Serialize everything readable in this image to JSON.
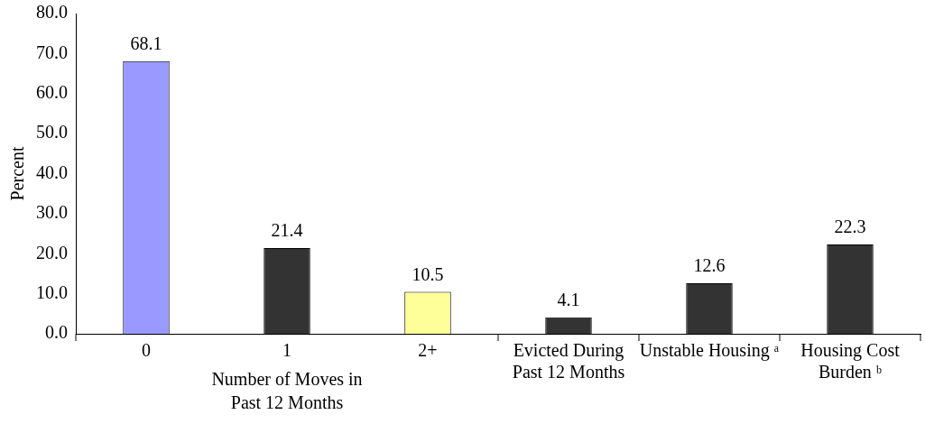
{
  "chart_data": {
    "type": "bar",
    "ylabel": "Percent",
    "categories": [
      "0",
      "1",
      "2+",
      "Evicted During Past 12 Months",
      "Unstable Housing ᵃ",
      "Housing Cost Burden ᵇ"
    ],
    "values": [
      68.1,
      21.4,
      10.5,
      4.1,
      12.6,
      22.3
    ],
    "colors": [
      "#9999ff",
      "#333333",
      "#ffff99",
      "#333333",
      "#333333",
      "#333333"
    ],
    "data_labels": true,
    "ylim": [
      0,
      80
    ],
    "yticks": [
      {
        "value": 0,
        "label": "0.0"
      },
      {
        "value": 10,
        "label": "10.0"
      },
      {
        "value": 20,
        "label": "20.0"
      },
      {
        "value": 30,
        "label": "30.0"
      },
      {
        "value": 40,
        "label": "40.0"
      },
      {
        "value": 50,
        "label": "50.0"
      },
      {
        "value": 60,
        "label": "60.0"
      },
      {
        "value": 70,
        "label": "70.0"
      },
      {
        "value": 80,
        "label": "80.0"
      }
    ],
    "annotations": [
      "Number of Moves in Past 12 Months"
    ],
    "grid": false,
    "legend": false
  }
}
